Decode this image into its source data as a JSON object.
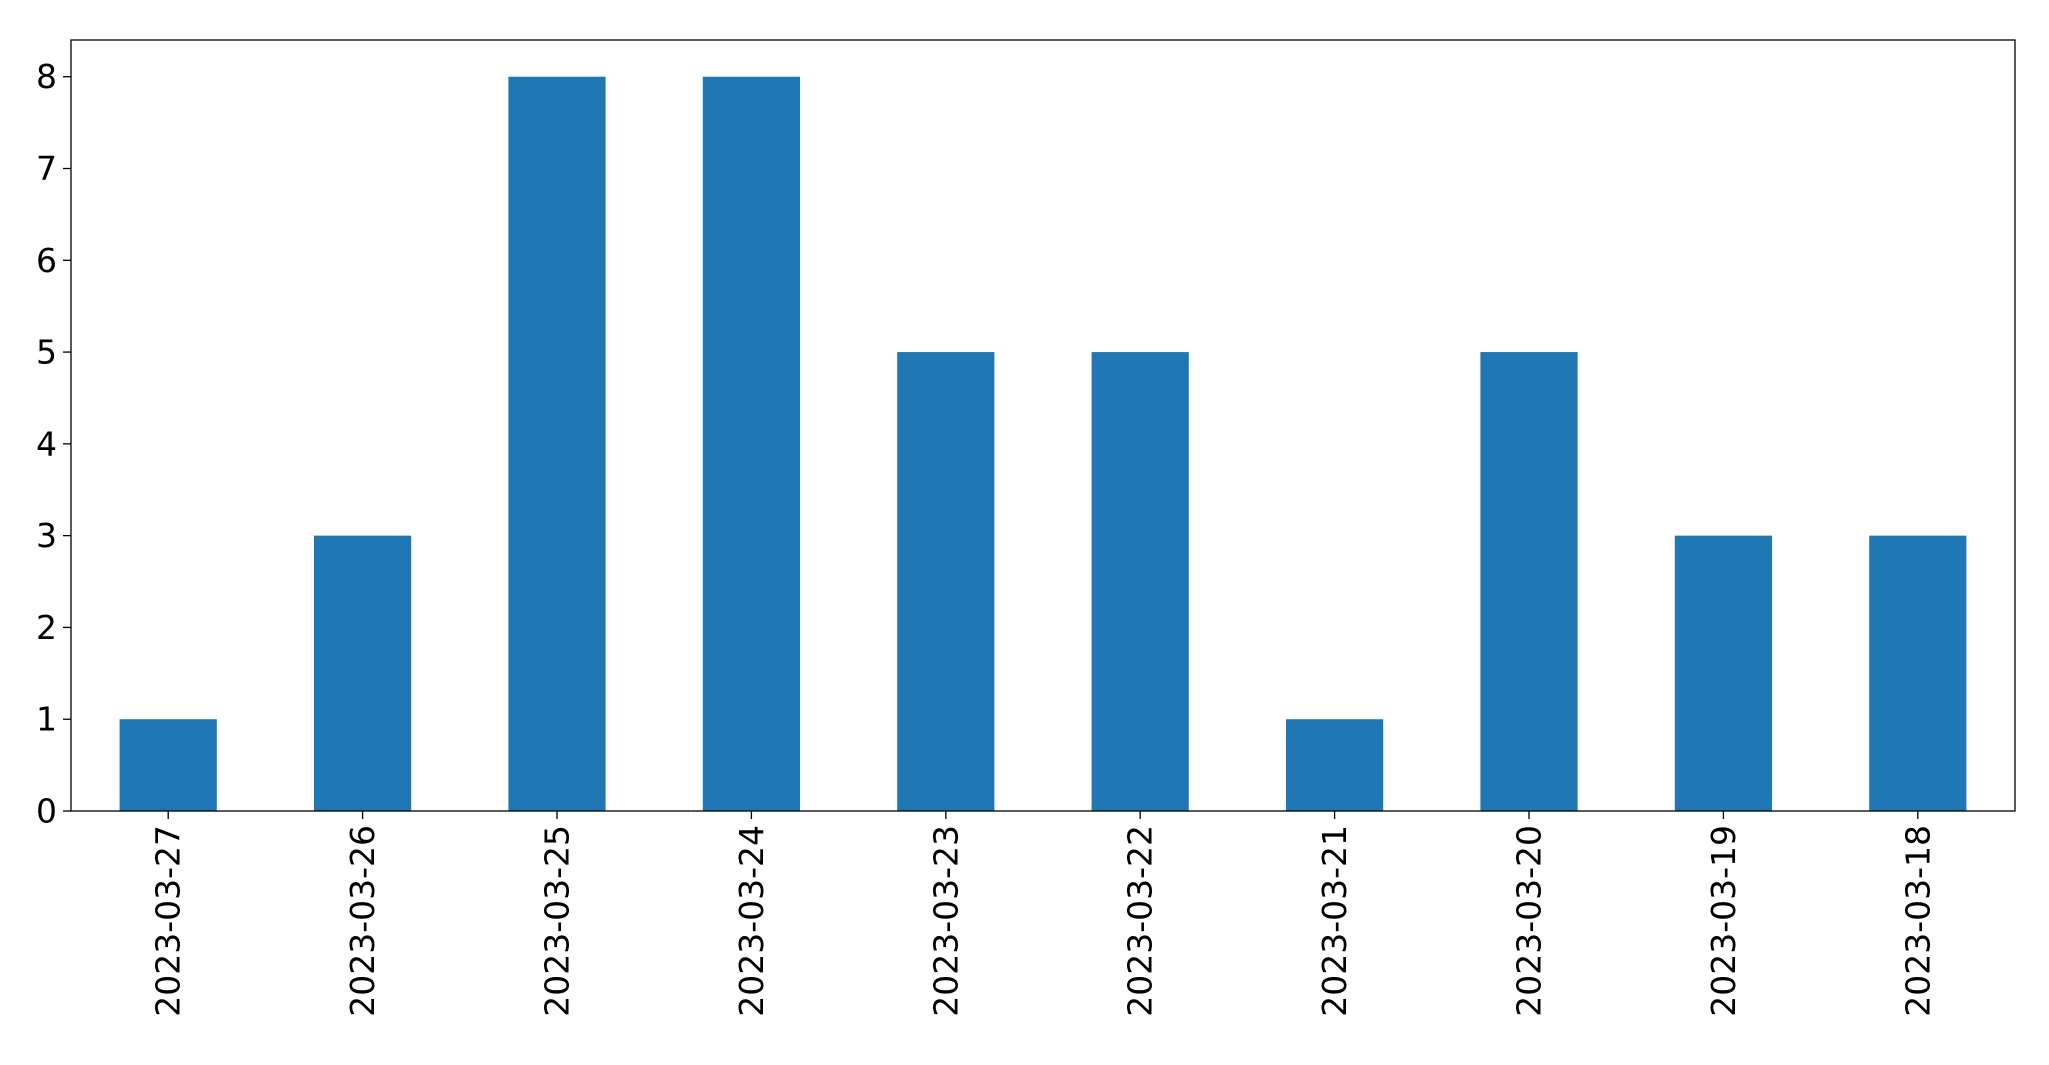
{
  "chart_data": {
    "type": "bar",
    "title": "",
    "xlabel": "",
    "ylabel": "",
    "categories": [
      "2023-03-27",
      "2023-03-26",
      "2023-03-25",
      "2023-03-24",
      "2023-03-23",
      "2023-03-22",
      "2023-03-21",
      "2023-03-20",
      "2023-03-19",
      "2023-03-18"
    ],
    "values": [
      1,
      3,
      8,
      8,
      5,
      5,
      1,
      5,
      3,
      3
    ],
    "ylim": [
      0,
      8.4
    ],
    "yticks": [
      0,
      1,
      2,
      3,
      4,
      5,
      6,
      7,
      8
    ],
    "bar_color": "#1f77b4",
    "grid": false,
    "legend": "none"
  }
}
